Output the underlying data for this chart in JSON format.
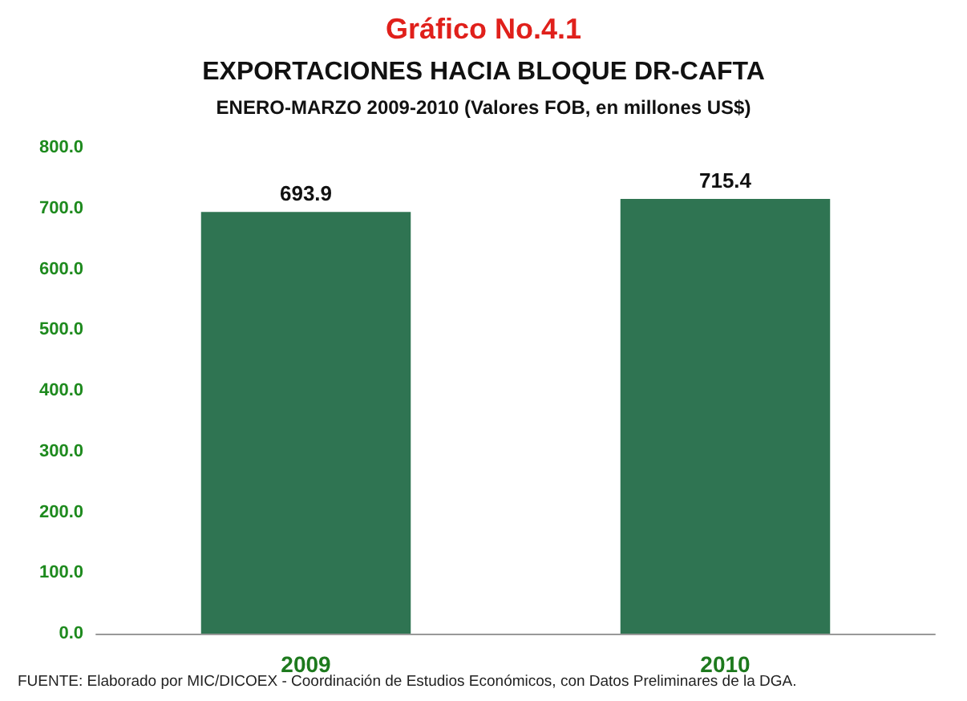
{
  "chart_data": {
    "type": "bar",
    "title": "Gráfico No.4.1",
    "subtitle": "EXPORTACIONES HACIA BLOQUE DR-CAFTA\nENERO-MARZO 2009-2010 (Valores FOB, en millones US$)",
    "categories": [
      "2009",
      "2010"
    ],
    "values": [
      693.9,
      715.4
    ],
    "color": "#2f7452",
    "ylim": [
      0,
      800
    ],
    "yticks": [
      {
        "value": 0,
        "label": "0.0"
      },
      {
        "value": 100,
        "label": "100.0"
      },
      {
        "value": 200,
        "label": "200.0"
      },
      {
        "value": 300,
        "label": "300.0"
      },
      {
        "value": 400,
        "label": "400.0"
      },
      {
        "value": 500,
        "label": "500.0"
      },
      {
        "value": 600,
        "label": "600.0"
      },
      {
        "value": 700,
        "label": "700.0"
      },
      {
        "value": 800,
        "label": "800.0"
      }
    ],
    "grid": false,
    "data_labels": true,
    "annotations": [
      "FUENTE: Elaborado por MIC/DICOEX - Coordinación de Estudios Económicos, con Datos Preliminares de la DGA."
    ]
  }
}
